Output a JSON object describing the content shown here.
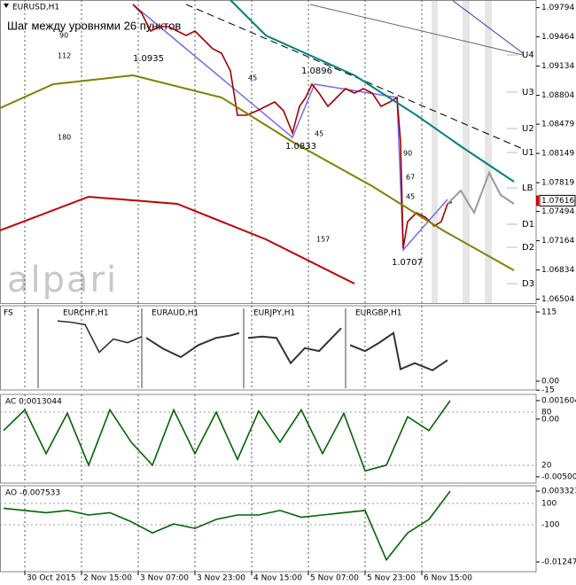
{
  "chart_data": [
    {
      "type": "line",
      "title": "EURUSD,H1",
      "subtitle": "Шаг между уровнями 26 пунктов",
      "watermark": "alpari",
      "xlim": [
        -7,
        144.25
      ],
      "xticks": [
        {
          "value": 0,
          "label": "30 Oct 2015"
        },
        {
          "value": 16,
          "label": "2 Nov 15:00"
        },
        {
          "value": 32,
          "label": "3 Nov 07:00"
        },
        {
          "value": 48,
          "label": "3 Nov 23:00"
        },
        {
          "value": 64,
          "label": "4 Nov 15:00"
        },
        {
          "value": 80,
          "label": "5 Nov 07:00"
        },
        {
          "value": 96,
          "label": "5 Nov 23:00"
        },
        {
          "value": 112,
          "label": "6 Nov 15:00"
        }
      ],
      "ylim": [
        1.0646,
        1.0988
      ],
      "yticks": [
        1.09794,
        1.09464,
        1.09134,
        1.08804,
        1.08479,
        1.08149,
        1.07819,
        1.07494,
        1.07164,
        1.06834,
        1.06504
      ],
      "last_price": 1.07616,
      "series": [
        {
          "color": "#a00000",
          "x": [
            30.5,
            33,
            35.5,
            38,
            40.5,
            43,
            45.5,
            48,
            50.5,
            53,
            55.5,
            58,
            60,
            62.5,
            65.5,
            68,
            70.5,
            73,
            75.5,
            77.5,
            79.25,
            81,
            83,
            85.5,
            88,
            90.5,
            93,
            95.5,
            98,
            100.5,
            103,
            105,
            106,
            106.75,
            108,
            110.5,
            113,
            115.5,
            117.5,
            119.25,
            120.5
          ],
          "values": [
            1.0983,
            1.0973,
            1.0953,
            1.0958,
            1.0958,
            1.0953,
            1.0948,
            1.0953,
            1.0943,
            1.0933,
            1.0928,
            1.0908,
            1.0858,
            1.0858,
            1.0863,
            1.0868,
            1.0873,
            1.0863,
            1.0838,
            1.0868,
            1.0878,
            1.0893,
            1.0883,
            1.0868,
            1.0878,
            1.0888,
            1.0883,
            1.0888,
            1.0883,
            1.0868,
            1.0873,
            1.0878,
            1.0828,
            1.0708,
            1.0738,
            1.0748,
            1.0743,
            1.0733,
            1.0738,
            1.0758,
            1.076
          ]
        },
        {
          "color": "#808000",
          "x": [
            -7,
            8,
            30.5,
            55.5,
            75.5,
            98,
            118,
            138
          ],
          "values": [
            1.0866,
            1.0893,
            1.0903,
            1.0878,
            1.0828,
            1.0778,
            1.0728,
            1.0683
          ]
        },
        {
          "color": "#008080",
          "x": [
            58,
            68,
            93,
            110.5,
            123,
            138
          ],
          "values": [
            1.0988,
            1.0948,
            1.0903,
            1.0858,
            1.0823,
            1.0783
          ]
        },
        {
          "color": "#c00000",
          "x": [
            -7,
            18,
            43,
            68,
            93
          ],
          "values": [
            1.0728,
            1.0766,
            1.0758,
            1.0718,
            1.0668
          ]
        },
        {
          "color": "#9a9a9a",
          "x": [
            119.25,
            123,
            126.75,
            131,
            134.25,
            138
          ],
          "values": [
            1.0758,
            1.0773,
            1.0748,
            1.0793,
            1.0768,
            1.0758
          ]
        }
      ],
      "levels": [
        {
          "label": "U4",
          "value": 1.0926
        },
        {
          "label": "U3",
          "value": 1.0884
        },
        {
          "label": "U2",
          "value": 1.0843
        },
        {
          "label": "U1",
          "value": 1.0816
        },
        {
          "label": "LB",
          "value": 1.0776
        },
        {
          "label": "D1",
          "value": 1.0735
        },
        {
          "label": "D2",
          "value": 1.0709
        },
        {
          "label": "D3",
          "value": 1.0668
        }
      ],
      "annotations": [
        "1.0935",
        "1.0896",
        "1.0833",
        "1.0707",
        "90",
        "112",
        "180",
        "45",
        "45",
        "90",
        "67",
        "45",
        "157"
      ]
    },
    {
      "type": "line",
      "title": "FS",
      "ylim": [
        -14.7,
        125.3
      ],
      "yticks": [
        115,
        {
          "value": 0,
          "label": "0.00"
        },
        -15
      ],
      "series": [
        {
          "name": "EURCHF,H1",
          "color": "#333333",
          "x": [
            9.25,
            13,
            17,
            21,
            25,
            29,
            33
          ],
          "values": [
            100,
            98,
            94,
            48,
            70,
            64,
            74
          ]
        },
        {
          "name": "EURAUD,H1",
          "color": "#333333",
          "x": [
            34.25,
            39,
            44,
            49,
            54,
            58,
            60.5
          ],
          "values": [
            72,
            54,
            40,
            60,
            72,
            76,
            80
          ]
        },
        {
          "name": "EURJPY,H1",
          "color": "#333333",
          "x": [
            63,
            67,
            71,
            75,
            79,
            83,
            89.25
          ],
          "values": [
            72,
            74,
            72,
            30,
            55,
            50,
            88
          ]
        },
        {
          "name": "EURGBP,H1",
          "color": "#333333",
          "x": [
            91.75,
            96,
            100,
            104,
            106,
            110,
            115,
            119.25
          ],
          "values": [
            60,
            50,
            64,
            80,
            20,
            30,
            18,
            35
          ]
        }
      ]
    },
    {
      "type": "line",
      "title": "AC 0.0013044",
      "ylim": [
        -0.00555,
        0.00214
      ],
      "yticks": [
        0.001604,
        {
          "value": 0,
          "label": "0.00"
        },
        -0.005007
      ],
      "overlay_ylim": [
        0,
        100
      ],
      "overlay_ticks": [
        80,
        20
      ],
      "series": [
        {
          "color": "#006400",
          "x": [
            -6,
            0,
            6,
            12,
            18,
            24,
            30,
            36,
            42,
            48,
            54,
            60,
            66,
            72,
            78,
            84,
            90,
            96,
            102,
            108,
            114,
            120
          ],
          "values": [
            -0.001,
            0.0008,
            -0.003,
            0.0005,
            -0.004,
            0.0008,
            -0.002,
            -0.004,
            0.0008,
            -0.003,
            0.0006,
            -0.0035,
            0.0007,
            -0.002,
            0.0008,
            -0.003,
            0.0005,
            -0.0045,
            -0.004,
            0.0002,
            -0.001,
            0.0016
          ]
        }
      ]
    },
    {
      "type": "line",
      "title": "AO -0.007533",
      "ylim": [
        -0.01465,
        0.00451
      ],
      "yticks": [
        0.003323,
        -0.012478
      ],
      "overlay_ylim": [
        -542,
        267
      ],
      "overlay_ticks": [
        100,
        -100
      ],
      "series": [
        {
          "color": "#006400",
          "x": [
            -6,
            0,
            6,
            12,
            18,
            24,
            30,
            36,
            42,
            48,
            54,
            60,
            66,
            72,
            78,
            84,
            90,
            96,
            102,
            108,
            114,
            120
          ],
          "values": [
            -0.0005,
            -0.001,
            -0.0015,
            -0.001,
            -0.002,
            -0.0015,
            -0.0035,
            -0.006,
            -0.004,
            -0.005,
            -0.003,
            -0.002,
            -0.002,
            -0.001,
            -0.0025,
            -0.002,
            -0.0015,
            -0.001,
            -0.012,
            -0.006,
            -0.003,
            0.0033
          ]
        }
      ]
    }
  ]
}
